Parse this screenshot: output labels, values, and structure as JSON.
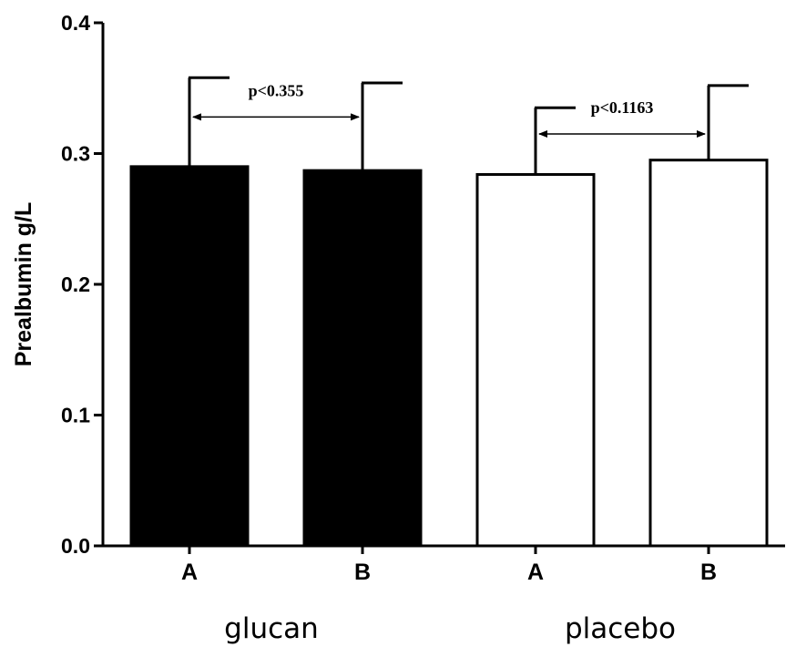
{
  "chart_data": {
    "type": "bar",
    "ylabel": "Prealbumin g/L",
    "ylim": [
      0,
      0.4
    ],
    "yticks": [
      "0.0",
      "0.1",
      "0.2",
      "0.3",
      "0.4"
    ],
    "groups": [
      "glucan",
      "placebo"
    ],
    "categories": [
      "A",
      "B",
      "A",
      "B"
    ],
    "bars": [
      {
        "group": "glucan",
        "category": "A",
        "value": 0.29,
        "error": 0.068,
        "color": "#000000"
      },
      {
        "group": "glucan",
        "category": "B",
        "value": 0.287,
        "error": 0.067,
        "color": "#000000"
      },
      {
        "group": "placebo",
        "category": "A",
        "value": 0.284,
        "error": 0.051,
        "color": "#ffffff"
      },
      {
        "group": "placebo",
        "category": "B",
        "value": 0.295,
        "error": 0.057,
        "color": "#ffffff"
      }
    ],
    "annotations": [
      {
        "text": "p<0.355",
        "from_bar": 0,
        "to_bar": 1,
        "y": 0.328
      },
      {
        "text": "p<0.1163",
        "from_bar": 2,
        "to_bar": 3,
        "y": 0.315
      }
    ],
    "grid": false,
    "legend": "none"
  }
}
